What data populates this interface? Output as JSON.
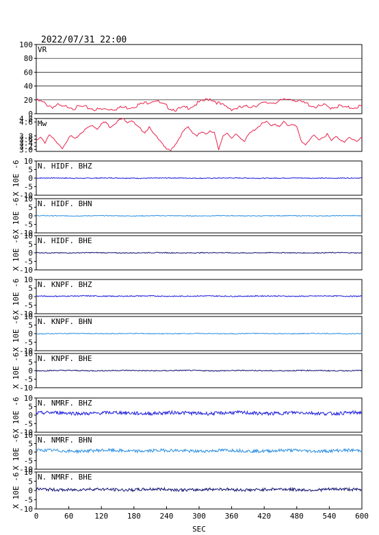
{
  "title": "2022/07/31 22:00",
  "xlabel": "SEC",
  "chart_data": {
    "type": "line",
    "xlim": [
      0,
      600
    ],
    "xticks": [
      0,
      60,
      120,
      180,
      240,
      300,
      360,
      420,
      480,
      540,
      600
    ],
    "grid": "horizontal lines on top panels",
    "panels": [
      {
        "id": "vr",
        "label": "VR",
        "ylim": [
          0,
          100
        ],
        "yticks": [
          "100",
          "80",
          "60",
          "40",
          "20",
          "0"
        ],
        "yvalues": [
          100,
          80,
          60,
          40,
          20,
          0
        ],
        "color": "#e8204a",
        "grid": true,
        "series_x": [
          0,
          10,
          20,
          30,
          40,
          50,
          60,
          70,
          80,
          90,
          100,
          110,
          120,
          130,
          140,
          150,
          160,
          170,
          180,
          190,
          200,
          210,
          220,
          230,
          240,
          250,
          260,
          270,
          280,
          290,
          300,
          310,
          320,
          330,
          340,
          350,
          360,
          370,
          380,
          390,
          400,
          410,
          420,
          430,
          440,
          450,
          460,
          470,
          480,
          490,
          500,
          510,
          520,
          530,
          540,
          550,
          560,
          570,
          580,
          590,
          600
        ],
        "series_y": [
          19,
          17,
          13,
          10,
          12,
          9,
          11,
          8,
          10,
          9,
          8,
          6,
          6,
          7,
          7,
          8,
          9,
          9,
          11,
          13,
          15,
          18,
          20,
          14,
          11,
          7,
          6,
          8,
          9,
          12,
          16,
          19,
          22,
          18,
          13,
          10,
          7,
          8,
          9,
          10,
          12,
          13,
          15,
          16,
          17,
          18,
          20,
          22,
          19,
          16,
          14,
          11,
          10,
          12,
          9,
          10,
          11,
          8,
          9,
          10,
          11
        ]
      },
      {
        "id": "mw",
        "label": "Mw",
        "ylim": [
          2.9,
          4.8
        ],
        "yticks": [
          "4.8",
          "4.6",
          "3.8",
          "3.6",
          "3.4",
          "3.2",
          "3.0"
        ],
        "yvalues": [
          4.8,
          4.6,
          3.8,
          3.6,
          3.4,
          3.2,
          3.0
        ],
        "color": "#e8204a",
        "grid": false,
        "series_x": [
          0,
          8,
          16,
          24,
          32,
          40,
          48,
          56,
          64,
          72,
          80,
          88,
          96,
          104,
          112,
          120,
          128,
          136,
          144,
          152,
          160,
          168,
          176,
          184,
          192,
          200,
          208,
          216,
          224,
          232,
          240,
          248,
          256,
          264,
          272,
          280,
          288,
          296,
          304,
          312,
          320,
          328,
          336,
          344,
          352,
          360,
          368,
          376,
          384,
          392,
          400,
          408,
          416,
          424,
          432,
          440,
          448,
          456,
          464,
          472,
          480,
          488,
          496,
          504,
          512,
          520,
          528,
          536,
          544,
          552,
          560,
          568,
          576,
          584,
          592,
          600
        ],
        "series_y": [
          3.5,
          3.7,
          3.4,
          3.9,
          3.6,
          3.3,
          3.1,
          3.5,
          3.8,
          3.6,
          3.9,
          4.1,
          4.3,
          4.4,
          4.2,
          4.5,
          4.6,
          4.3,
          4.5,
          4.7,
          4.8,
          4.6,
          4.7,
          4.4,
          4.2,
          4.0,
          4.3,
          3.9,
          3.7,
          3.4,
          3.0,
          2.95,
          3.3,
          3.7,
          4.1,
          4.3,
          4.0,
          3.8,
          4.0,
          3.9,
          4.1,
          4.0,
          2.95,
          3.8,
          4.0,
          3.6,
          3.9,
          3.7,
          3.5,
          3.9,
          4.1,
          4.3,
          4.5,
          4.6,
          4.4,
          4.5,
          4.3,
          4.6,
          4.4,
          4.5,
          4.3,
          3.5,
          3.3,
          3.6,
          3.8,
          3.6,
          3.7,
          3.9,
          3.5,
          3.8,
          3.6,
          3.4,
          3.7,
          3.6,
          3.5,
          3.7
        ]
      }
    ],
    "waveforms": [
      {
        "id": "hidf-bhz",
        "label": "N. HIDF. BHZ",
        "color": "#1a1adc",
        "amplitude": 0.25,
        "offset": 0.0
      },
      {
        "id": "hidf-bhn",
        "label": "N. HIDF. BHN",
        "color": "#2a8ee0",
        "amplitude": 0.22,
        "offset": 0.0
      },
      {
        "id": "hidf-bhe",
        "label": "N. HIDF. BHE",
        "color": "#101070",
        "amplitude": 0.25,
        "offset": 0.0
      },
      {
        "id": "knpf-bhz",
        "label": "N. KNPF. BHZ",
        "color": "#1a1adc",
        "amplitude": 0.3,
        "offset": 0.3
      },
      {
        "id": "knpf-bhn",
        "label": "N. KNPF. BHN",
        "color": "#2a8ee0",
        "amplitude": 0.25,
        "offset": 0.0
      },
      {
        "id": "knpf-bhe",
        "label": "N. KNPF. BHE",
        "color": "#101070",
        "amplitude": 0.3,
        "offset": 0.0
      },
      {
        "id": "nmrf-bhz",
        "label": "N. NMRF. BHZ",
        "color": "#1a1adc",
        "amplitude": 1.0,
        "offset": 1.2
      },
      {
        "id": "nmrf-bhn",
        "label": "N. NMRF. BHN",
        "color": "#2a8ee0",
        "amplitude": 0.9,
        "offset": 0.8
      },
      {
        "id": "nmrf-bhe",
        "label": "N. NMRF. BHE",
        "color": "#101070",
        "amplitude": 0.8,
        "offset": 0.5
      }
    ],
    "wave_ylim": [
      -10,
      10
    ],
    "wave_yticks": [
      "10",
      "5",
      "0",
      "-5",
      "-10"
    ],
    "wave_yvalues": [
      10,
      5,
      0,
      -5,
      -10
    ],
    "wave_ylabel": "X 10E -6"
  }
}
